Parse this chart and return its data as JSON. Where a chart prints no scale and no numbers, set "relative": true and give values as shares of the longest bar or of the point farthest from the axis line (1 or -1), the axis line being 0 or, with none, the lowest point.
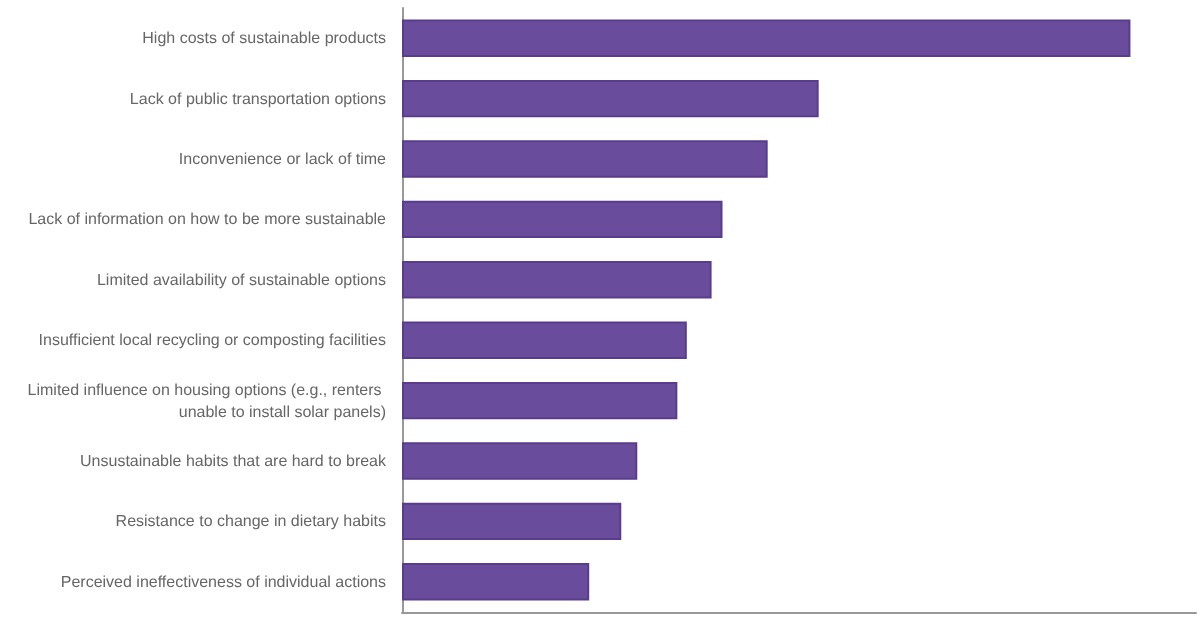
{
  "chart_data": {
    "type": "bar",
    "orientation": "horizontal",
    "relative": true,
    "categories": [
      "High costs of sustainable products",
      "Lack of public transportation options",
      "Inconvenience or lack of time",
      "Lack of information on how to be more sustainable",
      "Limited availability of sustainable options",
      "Insufficient local recycling or composting facilities",
      "Limited influence on housing options (e.g., renters unable to install solar panels)",
      "Unsustainable habits that are hard to break",
      "Resistance to change in dietary habits",
      "Perceived ineffectiveness of individual actions"
    ],
    "values": [
      1,
      0.572,
      0.502,
      0.44,
      0.425,
      0.391,
      0.378,
      0.323,
      0.301,
      0.257
    ],
    "color": "#6a4c9c"
  }
}
